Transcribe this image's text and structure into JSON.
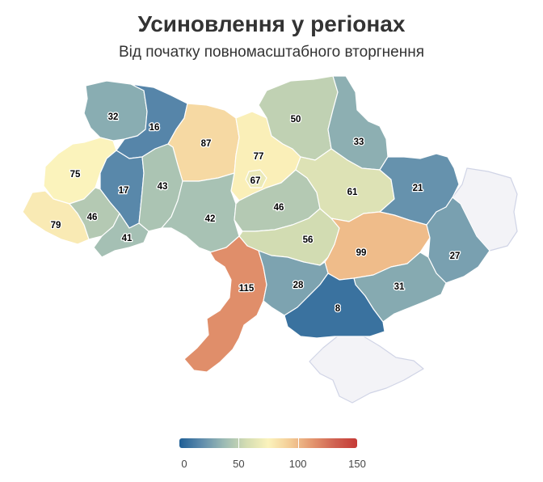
{
  "title": "Усиновлення у регіонах",
  "subtitle": "Від початку повномасштабного вторгнення",
  "colors": {
    "scale": [
      "#1f5f96",
      "#5f8cac",
      "#9bbab4",
      "#d3dcb2",
      "#fbf3bc",
      "#f3cb95",
      "#e3956e",
      "#cf6151",
      "#c53a36"
    ],
    "nodata": "#f3f3f7"
  },
  "legend": {
    "min": 0,
    "max": 150,
    "ticks": [
      {
        "value": 0,
        "label": "0"
      },
      {
        "value": 50,
        "label": "50"
      },
      {
        "value": 100,
        "label": "100"
      },
      {
        "value": 150,
        "label": "150"
      }
    ]
  },
  "regions": [
    {
      "id": "volyn",
      "value": 32
    },
    {
      "id": "rivne",
      "value": 16
    },
    {
      "id": "zhytomyr",
      "value": 87
    },
    {
      "id": "kyiv-oblast",
      "value": 77
    },
    {
      "id": "kyiv-city",
      "value": 67
    },
    {
      "id": "chernihiv",
      "value": 50
    },
    {
      "id": "sumy",
      "value": 33
    },
    {
      "id": "lviv",
      "value": 75
    },
    {
      "id": "ternopil",
      "value": 17
    },
    {
      "id": "khmelnytskyi",
      "value": 43
    },
    {
      "id": "zakarpattia",
      "value": 79
    },
    {
      "id": "ivano-frankivsk",
      "value": 46
    },
    {
      "id": "chernivtsi",
      "value": 41
    },
    {
      "id": "vinnytsia",
      "value": 42
    },
    {
      "id": "cherkasy",
      "value": 46
    },
    {
      "id": "poltava",
      "value": 61
    },
    {
      "id": "kharkiv",
      "value": 21
    },
    {
      "id": "luhansk",
      "value": null
    },
    {
      "id": "kirovohrad",
      "value": 56
    },
    {
      "id": "dnipropetrovsk",
      "value": 99
    },
    {
      "id": "donetsk",
      "value": 27
    },
    {
      "id": "odesa",
      "value": 115
    },
    {
      "id": "mykolaiv",
      "value": 28
    },
    {
      "id": "zaporizhzhia",
      "value": 31
    },
    {
      "id": "kherson",
      "value": 8
    },
    {
      "id": "crimea",
      "value": null
    }
  ]
}
